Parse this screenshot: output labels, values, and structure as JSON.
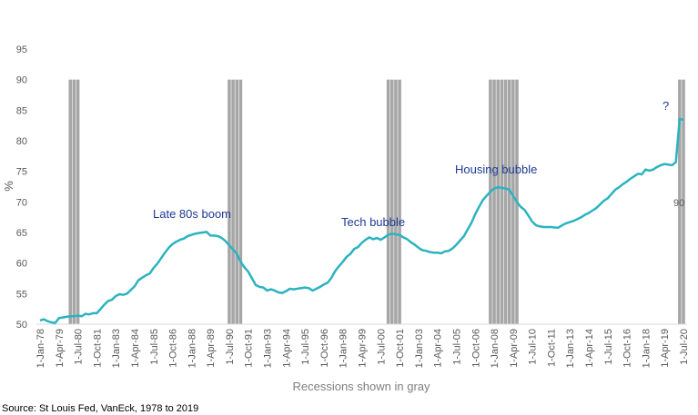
{
  "chart_data": {
    "type": "line",
    "ylabel": "%",
    "xlabel": "Recessions shown in gray",
    "source": "Source:  St Louis Fed, VanEck, 1978 to 2019",
    "ylim": [
      50,
      95
    ],
    "yticks": [
      50,
      55,
      60,
      65,
      70,
      75,
      80,
      85,
      90,
      95
    ],
    "annotations": [
      "Late 80s boom",
      "Tech bubble",
      "Housing bubble",
      "?",
      "90"
    ],
    "categories": [
      "1-Jan-78",
      null,
      null,
      null,
      null,
      "1-Apr-79",
      null,
      null,
      null,
      null,
      "1-Jul-80",
      null,
      null,
      null,
      null,
      "1-Oct-81",
      null,
      null,
      null,
      null,
      "1-Jan-83",
      null,
      null,
      null,
      null,
      "1-Apr-84",
      null,
      null,
      null,
      null,
      "1-Jul-85",
      null,
      null,
      null,
      null,
      "1-Oct-86",
      null,
      null,
      null,
      null,
      "1-Jan-88",
      null,
      null,
      null,
      null,
      "1-Apr-89",
      null,
      null,
      null,
      null,
      "1-Jul-90",
      null,
      null,
      null,
      null,
      "1-Oct-91",
      null,
      null,
      null,
      null,
      "1-Jan-93",
      null,
      null,
      null,
      null,
      "1-Apr-94",
      null,
      null,
      null,
      null,
      "1-Jul-95",
      null,
      null,
      null,
      null,
      "1-Oct-96",
      null,
      null,
      null,
      null,
      "1-Jan-98",
      null,
      null,
      null,
      null,
      "1-Apr-99",
      null,
      null,
      null,
      null,
      "1-Jul-00",
      null,
      null,
      null,
      null,
      "1-Oct-01",
      null,
      null,
      null,
      null,
      "1-Jan-03",
      null,
      null,
      null,
      null,
      "1-Apr-04",
      null,
      null,
      null,
      null,
      "1-Jul-05",
      null,
      null,
      null,
      null,
      "1-Oct-06",
      null,
      null,
      null,
      null,
      "1-Jan-08",
      null,
      null,
      null,
      null,
      "1-Apr-09",
      null,
      null,
      null,
      null,
      "1-Jul-10",
      null,
      null,
      null,
      null,
      "1-Oct-11",
      null,
      null,
      null,
      null,
      "1-Jan-13",
      null,
      null,
      null,
      null,
      "1-Apr-14",
      null,
      null,
      null,
      null,
      "1-Jul-15",
      null,
      null,
      null,
      null,
      "1-Oct-16",
      null,
      null,
      null,
      null,
      "1-Jan-18",
      null,
      null,
      null,
      null,
      "1-Apr-19",
      null,
      null,
      null,
      null,
      "1-Jul-20"
    ],
    "series": [
      {
        "color": "#2bb3bf",
        "values": [
          50.6,
          50.8,
          50.5,
          50.3,
          50.2,
          51.0,
          51.1,
          51.2,
          51.3,
          51.3,
          51.4,
          51.3,
          51.7,
          51.6,
          51.8,
          51.8,
          52.5,
          53.2,
          53.8,
          54.0,
          54.6,
          54.9,
          54.8,
          55.0,
          55.6,
          56.2,
          57.2,
          57.6,
          58.0,
          58.3,
          59.2,
          59.9,
          60.8,
          61.7,
          62.5,
          63.1,
          63.5,
          63.8,
          64.0,
          64.4,
          64.6,
          64.8,
          64.9,
          65.0,
          65.1,
          64.5,
          64.5,
          64.4,
          64.1,
          63.6,
          62.9,
          62.2,
          61.5,
          60.2,
          59.3,
          58.6,
          57.5,
          56.4,
          56.1,
          56.0,
          55.5,
          55.7,
          55.5,
          55.2,
          55.1,
          55.4,
          55.8,
          55.7,
          55.8,
          55.9,
          56.0,
          55.9,
          55.5,
          55.8,
          56.1,
          56.5,
          56.8,
          57.6,
          58.7,
          59.5,
          60.2,
          61.0,
          61.5,
          62.3,
          62.6,
          63.3,
          63.8,
          64.2,
          63.9,
          64.1,
          63.8,
          64.2,
          64.6,
          64.8,
          64.7,
          64.6,
          64.2,
          63.9,
          63.4,
          63.0,
          62.5,
          62.1,
          62.0,
          61.8,
          61.7,
          61.7,
          61.6,
          61.9,
          62.0,
          62.4,
          63.0,
          63.7,
          64.4,
          65.5,
          66.6,
          68.0,
          69.2,
          70.3,
          71.0,
          71.7,
          72.2,
          72.4,
          72.3,
          72.2,
          72.0,
          71.0,
          70.0,
          69.2,
          68.7,
          67.8,
          66.8,
          66.2,
          66.0,
          65.9,
          65.9,
          65.9,
          65.8,
          65.8,
          66.2,
          66.5,
          66.7,
          66.9,
          67.2,
          67.5,
          67.9,
          68.2,
          68.6,
          69.0,
          69.6,
          70.2,
          70.6,
          71.3,
          72.0,
          72.4,
          72.9,
          73.3,
          73.8,
          74.2,
          74.6,
          74.5,
          75.3,
          75.1,
          75.3,
          75.7,
          76.0,
          76.2,
          76.1,
          76.0,
          76.5,
          83.6,
          83.4
        ]
      }
    ],
    "recession_bars": {
      "color": "#a6a6a6",
      "values": [
        null,
        null,
        null,
        null,
        null,
        null,
        null,
        null,
        90,
        90,
        90,
        null,
        null,
        null,
        null,
        null,
        null,
        null,
        null,
        null,
        null,
        null,
        null,
        null,
        null,
        null,
        null,
        null,
        null,
        null,
        null,
        null,
        null,
        null,
        null,
        null,
        null,
        null,
        null,
        null,
        null,
        null,
        null,
        null,
        null,
        null,
        null,
        null,
        null,
        null,
        90,
        90,
        90,
        90,
        null,
        null,
        null,
        null,
        null,
        null,
        null,
        null,
        null,
        null,
        null,
        null,
        null,
        null,
        null,
        null,
        null,
        null,
        null,
        null,
        null,
        null,
        null,
        null,
        null,
        null,
        null,
        null,
        null,
        null,
        null,
        null,
        null,
        null,
        null,
        null,
        null,
        null,
        90,
        90,
        90,
        90,
        null,
        null,
        null,
        null,
        null,
        null,
        null,
        null,
        null,
        null,
        null,
        null,
        null,
        null,
        null,
        null,
        null,
        null,
        null,
        null,
        null,
        null,
        null,
        90,
        90,
        90,
        90,
        90,
        90,
        90,
        90,
        null,
        null,
        null,
        null,
        null,
        null,
        null,
        null,
        null,
        null,
        null,
        null,
        null,
        null,
        null,
        null,
        null,
        null,
        null,
        null,
        null,
        null,
        null,
        null,
        null,
        null,
        null,
        null,
        null,
        null,
        null,
        null,
        null,
        null,
        null,
        null,
        null,
        null,
        null,
        null,
        null,
        null,
        90,
        90
      ]
    }
  }
}
